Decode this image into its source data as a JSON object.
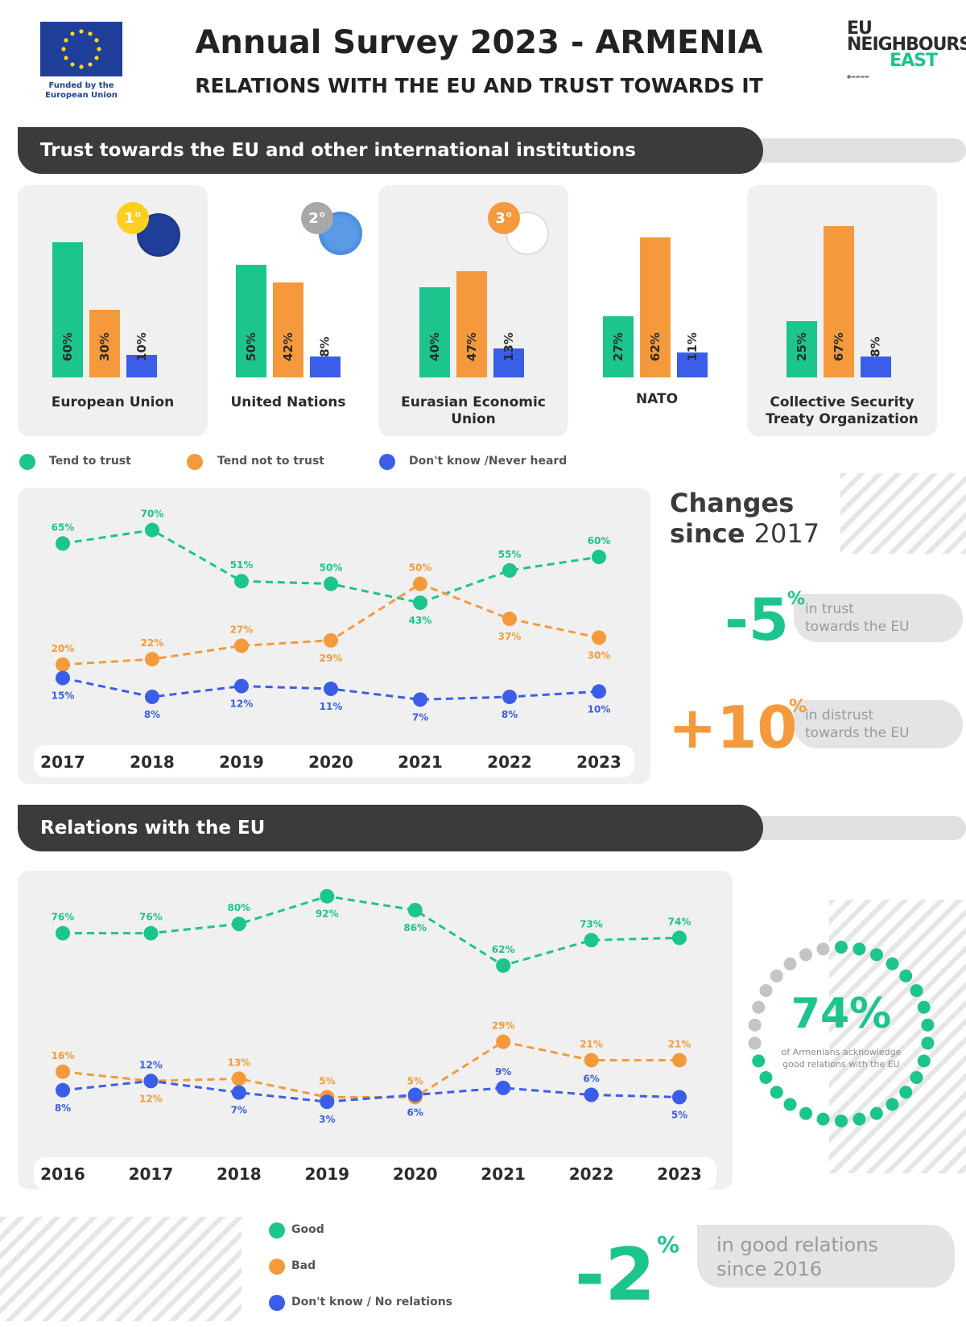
{
  "header": {
    "funded_by": "Funded by the European Union",
    "title": "Annual Survey 2023 - ARMENIA",
    "subtitle": "RELATIONS WITH THE EU AND TRUST TOWARDS IT",
    "logo": {
      "line1": "EU",
      "line2": "NEIGHBOURS",
      "line3": "EAST"
    }
  },
  "section_trust": {
    "title": "Trust towards the EU and other international institutions"
  },
  "section_relations": {
    "title": "Relations with the EU"
  },
  "colors": {
    "green": "#1cc48e",
    "orange": "#f59a3c",
    "blue": "#3b5ee8",
    "dark": "#3b3b3d",
    "panel": "#f0f0f0"
  },
  "trust_legend": {
    "trust": "Tend to trust",
    "not_trust": "Tend not to trust",
    "dont_know": "Don't know /Never heard"
  },
  "ranks": {
    "first": "1°",
    "second": "2°",
    "third": "3°"
  },
  "changes": {
    "title_bold1": "Changes",
    "title_bold2": "since",
    "title_year": "2017",
    "trust_change": "-5",
    "trust_note1": "in trust",
    "trust_note2": "towards the EU",
    "distrust_change": "+10",
    "distrust_note1": "in distrust",
    "distrust_note2": "towards the EU",
    "pct": "%"
  },
  "relations_summary": {
    "pct": "74%",
    "note1": "of Armenians acknowledge",
    "note2": "good relations with the EU",
    "change": "-2",
    "change_pct": "%",
    "change_note1": "in good relations",
    "change_note2": "since 2016"
  },
  "relations_legend": {
    "good": "Good",
    "bad": "Bad",
    "dont_know": "Don't know / No relations"
  },
  "chart_data": [
    {
      "type": "bar",
      "title": "Trust towards the EU and other international institutions",
      "categories": [
        "European Union",
        "United Nations",
        "Eurasian Economic Union",
        "NATO",
        "Collective Security Treaty Organization"
      ],
      "series": [
        {
          "name": "Tend to trust",
          "values": [
            60,
            50,
            40,
            27,
            25
          ]
        },
        {
          "name": "Tend not to trust",
          "values": [
            30,
            42,
            47,
            62,
            67
          ]
        },
        {
          "name": "Don't know /Never heard",
          "values": [
            10,
            8,
            13,
            11,
            8
          ]
        }
      ],
      "unit": "%"
    },
    {
      "type": "line",
      "title": "Changes since 2017",
      "x": [
        "2017",
        "2018",
        "2019",
        "2020",
        "2021",
        "2022",
        "2023"
      ],
      "series": [
        {
          "name": "Tend to trust",
          "values": [
            65,
            70,
            51,
            50,
            43,
            55,
            60
          ]
        },
        {
          "name": "Tend not to trust",
          "values": [
            20,
            22,
            27,
            29,
            50,
            37,
            30
          ]
        },
        {
          "name": "Don't know /Never heard",
          "values": [
            15,
            8,
            12,
            11,
            7,
            8,
            10
          ]
        }
      ],
      "unit": "%"
    },
    {
      "type": "line",
      "title": "Relations with the EU",
      "x": [
        "2016",
        "2017",
        "2018",
        "2019",
        "2020",
        "2021",
        "2022",
        "2023"
      ],
      "series": [
        {
          "name": "Good",
          "values": [
            76,
            76,
            80,
            92,
            86,
            62,
            73,
            74
          ]
        },
        {
          "name": "Bad",
          "values": [
            16,
            12,
            13,
            5,
            5,
            29,
            21,
            21
          ]
        },
        {
          "name": "Don't know / No relations",
          "values": [
            8,
            12,
            7,
            3,
            6,
            9,
            6,
            5
          ]
        }
      ],
      "unit": "%"
    }
  ]
}
